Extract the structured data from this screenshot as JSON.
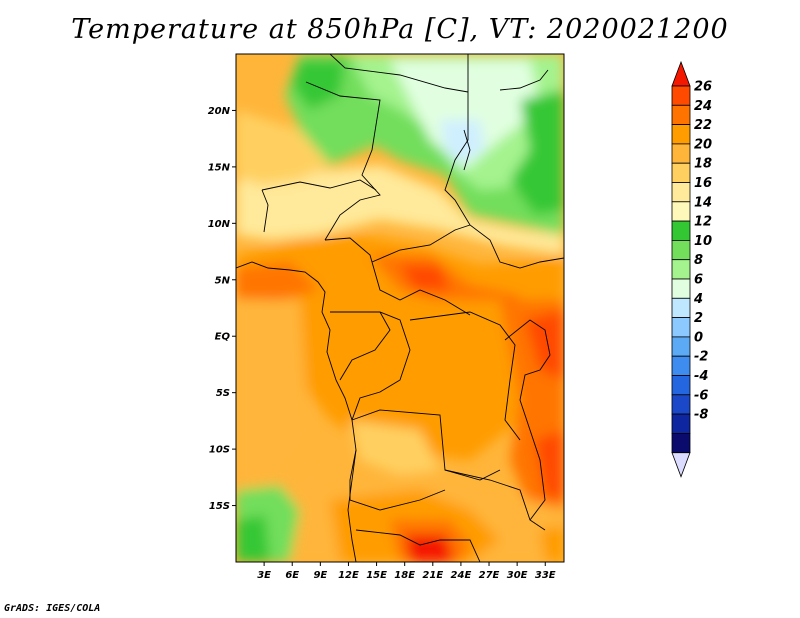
{
  "title": "Temperature at 850hPa [C], VT: 2020021200",
  "credit": "GrADS: IGES/COLA",
  "map": {
    "lat_labels": [
      "20N",
      "15N",
      "10N",
      "5N",
      "EQ",
      "5S",
      "10S",
      "15S"
    ],
    "lon_labels": [
      "3E",
      "6E",
      "9E",
      "12E",
      "15E",
      "18E",
      "21E",
      "24E",
      "27E",
      "30E",
      "33E"
    ],
    "lon_range_deg": [
      0,
      35
    ],
    "lat_range_deg": [
      -20,
      25
    ]
  },
  "colorbar": {
    "units": "C",
    "labels": [
      "26",
      "24",
      "22",
      "20",
      "18",
      "16",
      "14",
      "12",
      "10",
      "8",
      "6",
      "4",
      "2",
      "0",
      "-2",
      "-4",
      "-6",
      "-8"
    ],
    "colors": [
      "#f41800",
      "#ff4a00",
      "#ff7400",
      "#ff9c00",
      "#ffb53a",
      "#ffd060",
      "#ffe99a",
      "#fef8ba",
      "#34c734",
      "#72de5c",
      "#a4f38e",
      "#e1ffe0",
      "#bfe7ff",
      "#8cc9ff",
      "#5ca9f5",
      "#3e8cf0",
      "#2466df",
      "#1b48c8",
      "#0e26a0",
      "#0b0b6d",
      "#dcdcff"
    ]
  }
}
